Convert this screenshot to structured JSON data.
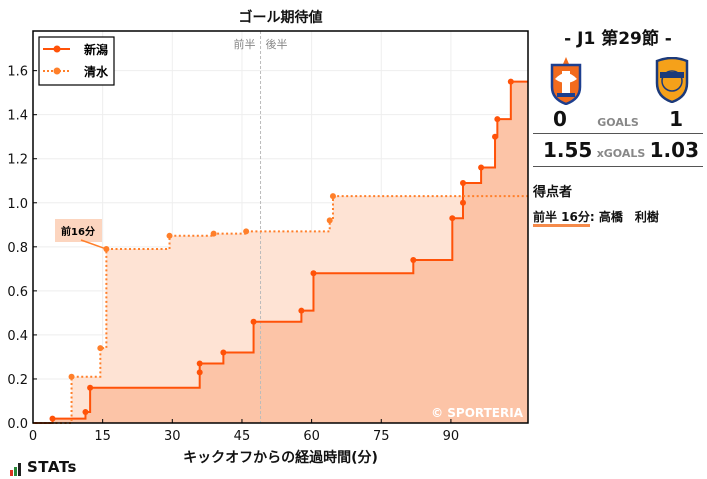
{
  "chart_data": {
    "type": "line",
    "subtype": "step-cumulative",
    "title": "ゴール期待値",
    "xlabel": "キックオフからの経過時間(分)",
    "ylabel": "",
    "xlim": [
      0,
      106.6
    ],
    "ylim": [
      0,
      1.78
    ],
    "x_ticks": [
      0,
      15,
      30,
      45,
      60,
      75,
      90
    ],
    "y_ticks": [
      0.0,
      0.2,
      0.4,
      0.6,
      0.8,
      1.0,
      1.2,
      1.4,
      1.6
    ],
    "grid": true,
    "legend_position": "upper left",
    "halftime_x": 49.0,
    "halftime_labels": [
      "前半",
      "後半"
    ],
    "series": [
      {
        "name": "新潟",
        "style": "solid",
        "color": "#ff5208",
        "fill": "#fcc4a7",
        "points": [
          [
            4.2,
            0.02
          ],
          [
            11.3,
            0.05
          ],
          [
            12.3,
            0.16
          ],
          [
            35.9,
            0.23
          ],
          [
            35.9,
            0.27
          ],
          [
            41.0,
            0.32
          ],
          [
            47.5,
            0.46
          ],
          [
            57.8,
            0.51
          ],
          [
            60.4,
            0.68
          ],
          [
            81.9,
            0.74
          ],
          [
            90.3,
            0.93
          ],
          [
            92.6,
            1.0
          ],
          [
            92.6,
            1.09
          ],
          [
            96.5,
            1.16
          ],
          [
            99.5,
            1.3
          ],
          [
            100.0,
            1.38
          ],
          [
            102.9,
            1.55
          ],
          [
            106.6,
            1.55
          ]
        ],
        "final": 1.55
      },
      {
        "name": "清水",
        "style": "dotted",
        "color": "#ff7f2a",
        "fill": "#fee3d4",
        "points": [
          [
            8.3,
            0.21
          ],
          [
            14.5,
            0.34
          ],
          [
            15.8,
            0.79
          ],
          [
            29.4,
            0.85
          ],
          [
            38.9,
            0.86
          ],
          [
            45.9,
            0.87
          ],
          [
            63.9,
            0.92
          ],
          [
            64.6,
            1.03
          ],
          [
            106.6,
            1.03
          ]
        ],
        "final": 1.03
      }
    ],
    "annotations": [
      {
        "text": "前16分",
        "x": 15.8,
        "y": 0.79
      }
    ]
  },
  "legend": {
    "items": [
      {
        "label": "新潟"
      },
      {
        "label": "清水"
      }
    ]
  },
  "watermark": "© SPORTERIA",
  "brand": "STATs",
  "side": {
    "round": "-  J1 第29節  -",
    "home": {
      "name": "新潟",
      "goals": "0",
      "xg": "1.55"
    },
    "away": {
      "name": "清水",
      "goals": "1",
      "xg": "1.03"
    },
    "goals_label": "GOALS",
    "xgoals_label": "xGOALS",
    "scorers_title": "得点者",
    "scorer_when": "前半 16分",
    "scorer_name": ": 高橋　利樹"
  }
}
